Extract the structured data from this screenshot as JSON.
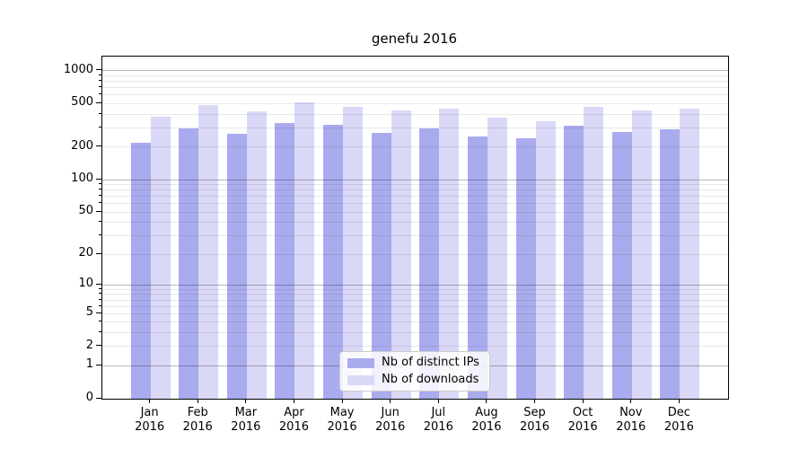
{
  "chart_data": {
    "type": "bar",
    "title": "genefu 2016",
    "categories": [
      "Jan",
      "Feb",
      "Mar",
      "Apr",
      "May",
      "Jun",
      "Jul",
      "Aug",
      "Sep",
      "Oct",
      "Nov",
      "Dec"
    ],
    "category_year": "2016",
    "series": [
      {
        "name": "Nb of distinct IPs",
        "color": "#aaaaef",
        "values": [
          218,
          299,
          267,
          335,
          322,
          269,
          295,
          252,
          242,
          313,
          274,
          291
        ]
      },
      {
        "name": "Nb of downloads",
        "color": "#d9d9f7",
        "values": [
          380,
          481,
          428,
          512,
          471,
          434,
          454,
          373,
          347,
          471,
          434,
          449
        ]
      }
    ],
    "xlabel": "",
    "ylabel": "",
    "yscale": "log1p",
    "ylim": [
      0,
      1350
    ],
    "yticks": [
      1000,
      500,
      200,
      100,
      50,
      20,
      10,
      5,
      2,
      1,
      0
    ],
    "ytick_labels": [
      "1000",
      "500",
      "200",
      "100",
      "50",
      "20",
      "10",
      "5",
      "2",
      "1",
      "0"
    ],
    "grid": "on",
    "legend_position": "lower center"
  },
  "colors": {
    "grid_major": "#b8b8b8",
    "grid_minor": "#e8e8e8",
    "spine": "#000000",
    "background": "#ffffff"
  }
}
